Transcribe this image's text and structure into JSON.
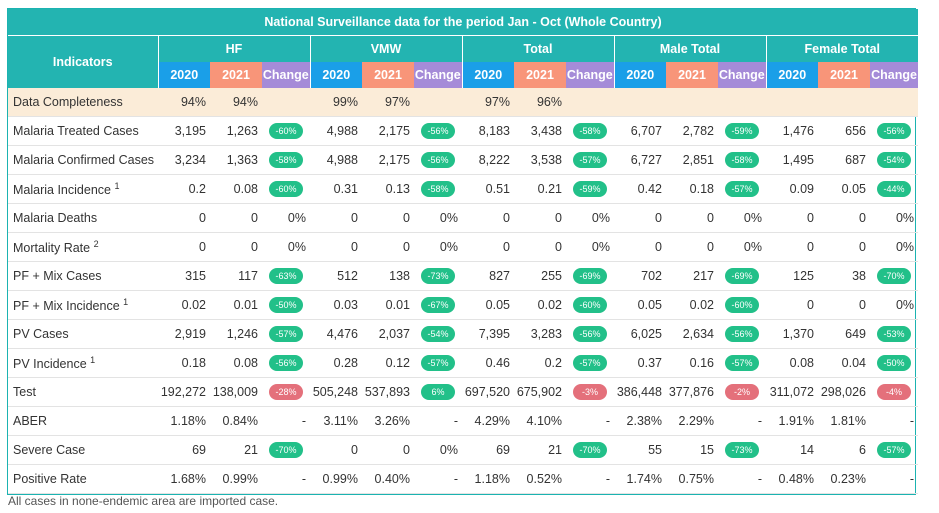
{
  "title": "National Surveillance data for the period Jan - Oct (Whole Country)",
  "indicators_header": "Indicators",
  "groups": [
    "HF",
    "VMW",
    "Total",
    "Male Total",
    "Female Total"
  ],
  "subheaders": {
    "y2020": "2020",
    "y2021": "2021",
    "change": "Change"
  },
  "rows": [
    {
      "label": "Data Completeness",
      "sup": "",
      "highlight": true,
      "cells": [
        {
          "a": "94%",
          "b": "94%",
          "c": "",
          "t": "none"
        },
        {
          "a": "99%",
          "b": "97%",
          "c": "",
          "t": "none"
        },
        {
          "a": "97%",
          "b": "96%",
          "c": "",
          "t": "none"
        },
        {
          "a": "",
          "b": "",
          "c": "",
          "t": "none"
        },
        {
          "a": "",
          "b": "",
          "c": "",
          "t": "none"
        }
      ]
    },
    {
      "label": "Malaria Treated Cases",
      "sup": "",
      "cells": [
        {
          "a": "3,195",
          "b": "1,263",
          "c": "-60%",
          "t": "green"
        },
        {
          "a": "4,988",
          "b": "2,175",
          "c": "-56%",
          "t": "green"
        },
        {
          "a": "8,183",
          "b": "3,438",
          "c": "-58%",
          "t": "green"
        },
        {
          "a": "6,707",
          "b": "2,782",
          "c": "-59%",
          "t": "green"
        },
        {
          "a": "1,476",
          "b": "656",
          "c": "-56%",
          "t": "green"
        }
      ]
    },
    {
      "label": "Malaria Confirmed Cases",
      "sup": "",
      "cells": [
        {
          "a": "3,234",
          "b": "1,363",
          "c": "-58%",
          "t": "green"
        },
        {
          "a": "4,988",
          "b": "2,175",
          "c": "-56%",
          "t": "green"
        },
        {
          "a": "8,222",
          "b": "3,538",
          "c": "-57%",
          "t": "green"
        },
        {
          "a": "6,727",
          "b": "2,851",
          "c": "-58%",
          "t": "green"
        },
        {
          "a": "1,495",
          "b": "687",
          "c": "-54%",
          "t": "green"
        }
      ]
    },
    {
      "label": "Malaria Incidence",
      "sup": "1",
      "cells": [
        {
          "a": "0.2",
          "b": "0.08",
          "c": "-60%",
          "t": "green"
        },
        {
          "a": "0.31",
          "b": "0.13",
          "c": "-58%",
          "t": "green"
        },
        {
          "a": "0.51",
          "b": "0.21",
          "c": "-59%",
          "t": "green"
        },
        {
          "a": "0.42",
          "b": "0.18",
          "c": "-57%",
          "t": "green"
        },
        {
          "a": "0.09",
          "b": "0.05",
          "c": "-44%",
          "t": "green"
        }
      ]
    },
    {
      "label": "Malaria Deaths",
      "sup": "",
      "cells": [
        {
          "a": "0",
          "b": "0",
          "c": "0%",
          "t": "text"
        },
        {
          "a": "0",
          "b": "0",
          "c": "0%",
          "t": "text"
        },
        {
          "a": "0",
          "b": "0",
          "c": "0%",
          "t": "text"
        },
        {
          "a": "0",
          "b": "0",
          "c": "0%",
          "t": "text"
        },
        {
          "a": "0",
          "b": "0",
          "c": "0%",
          "t": "text"
        }
      ]
    },
    {
      "label": "Mortality Rate",
      "sup": "2",
      "cells": [
        {
          "a": "0",
          "b": "0",
          "c": "0%",
          "t": "text"
        },
        {
          "a": "0",
          "b": "0",
          "c": "0%",
          "t": "text"
        },
        {
          "a": "0",
          "b": "0",
          "c": "0%",
          "t": "text"
        },
        {
          "a": "0",
          "b": "0",
          "c": "0%",
          "t": "text"
        },
        {
          "a": "0",
          "b": "0",
          "c": "0%",
          "t": "text"
        }
      ]
    },
    {
      "label": "PF + Mix Cases",
      "sup": "",
      "cells": [
        {
          "a": "315",
          "b": "117",
          "c": "-63%",
          "t": "green"
        },
        {
          "a": "512",
          "b": "138",
          "c": "-73%",
          "t": "green"
        },
        {
          "a": "827",
          "b": "255",
          "c": "-69%",
          "t": "green"
        },
        {
          "a": "702",
          "b": "217",
          "c": "-69%",
          "t": "green"
        },
        {
          "a": "125",
          "b": "38",
          "c": "-70%",
          "t": "green"
        }
      ]
    },
    {
      "label": "PF + Mix Incidence",
      "sup": "1",
      "cells": [
        {
          "a": "0.02",
          "b": "0.01",
          "c": "-50%",
          "t": "green"
        },
        {
          "a": "0.03",
          "b": "0.01",
          "c": "-67%",
          "t": "green"
        },
        {
          "a": "0.05",
          "b": "0.02",
          "c": "-60%",
          "t": "green"
        },
        {
          "a": "0.05",
          "b": "0.02",
          "c": "-60%",
          "t": "green"
        },
        {
          "a": "0",
          "b": "0",
          "c": "0%",
          "t": "text"
        }
      ]
    },
    {
      "label": "PV Cases",
      "sup": "",
      "cells": [
        {
          "a": "2,919",
          "b": "1,246",
          "c": "-57%",
          "t": "green"
        },
        {
          "a": "4,476",
          "b": "2,037",
          "c": "-54%",
          "t": "green"
        },
        {
          "a": "7,395",
          "b": "3,283",
          "c": "-56%",
          "t": "green"
        },
        {
          "a": "6,025",
          "b": "2,634",
          "c": "-56%",
          "t": "green"
        },
        {
          "a": "1,370",
          "b": "649",
          "c": "-53%",
          "t": "green"
        }
      ]
    },
    {
      "label": "PV Incidence",
      "sup": "1",
      "cells": [
        {
          "a": "0.18",
          "b": "0.08",
          "c": "-56%",
          "t": "green"
        },
        {
          "a": "0.28",
          "b": "0.12",
          "c": "-57%",
          "t": "green"
        },
        {
          "a": "0.46",
          "b": "0.2",
          "c": "-57%",
          "t": "green"
        },
        {
          "a": "0.37",
          "b": "0.16",
          "c": "-57%",
          "t": "green"
        },
        {
          "a": "0.08",
          "b": "0.04",
          "c": "-50%",
          "t": "green"
        }
      ]
    },
    {
      "label": "Test",
      "sup": "",
      "cells": [
        {
          "a": "192,272",
          "b": "138,009",
          "c": "-28%",
          "t": "red"
        },
        {
          "a": "505,248",
          "b": "537,893",
          "c": "6%",
          "t": "green"
        },
        {
          "a": "697,520",
          "b": "675,902",
          "c": "-3%",
          "t": "red"
        },
        {
          "a": "386,448",
          "b": "377,876",
          "c": "-2%",
          "t": "red"
        },
        {
          "a": "311,072",
          "b": "298,026",
          "c": "-4%",
          "t": "red"
        }
      ]
    },
    {
      "label": "ABER",
      "sup": "",
      "cells": [
        {
          "a": "1.18%",
          "b": "0.84%",
          "c": "-",
          "t": "text"
        },
        {
          "a": "3.11%",
          "b": "3.26%",
          "c": "-",
          "t": "text"
        },
        {
          "a": "4.29%",
          "b": "4.10%",
          "c": "-",
          "t": "text"
        },
        {
          "a": "2.38%",
          "b": "2.29%",
          "c": "-",
          "t": "text"
        },
        {
          "a": "1.91%",
          "b": "1.81%",
          "c": "-",
          "t": "text"
        }
      ]
    },
    {
      "label": "Severe Case",
      "sup": "",
      "cells": [
        {
          "a": "69",
          "b": "21",
          "c": "-70%",
          "t": "green"
        },
        {
          "a": "0",
          "b": "0",
          "c": "0%",
          "t": "text"
        },
        {
          "a": "69",
          "b": "21",
          "c": "-70%",
          "t": "green"
        },
        {
          "a": "55",
          "b": "15",
          "c": "-73%",
          "t": "green"
        },
        {
          "a": "14",
          "b": "6",
          "c": "-57%",
          "t": "green"
        }
      ]
    },
    {
      "label": "Positive Rate",
      "sup": "",
      "cells": [
        {
          "a": "1.68%",
          "b": "0.99%",
          "c": "-",
          "t": "text"
        },
        {
          "a": "0.99%",
          "b": "0.40%",
          "c": "-",
          "t": "text"
        },
        {
          "a": "1.18%",
          "b": "0.52%",
          "c": "-",
          "t": "text"
        },
        {
          "a": "1.74%",
          "b": "0.75%",
          "c": "-",
          "t": "text"
        },
        {
          "a": "0.48%",
          "b": "0.23%",
          "c": "-",
          "t": "text"
        }
      ]
    }
  ],
  "footnote": "All cases in none-endemic area are imported case.",
  "colors": {
    "header": "#23b4b1",
    "y2020": "#1a9fe8",
    "y2021": "#f89579",
    "change": "#a58bd8",
    "pill_green": "#22c089",
    "pill_red": "#e4707b",
    "highlight_row": "#fbecd8"
  }
}
